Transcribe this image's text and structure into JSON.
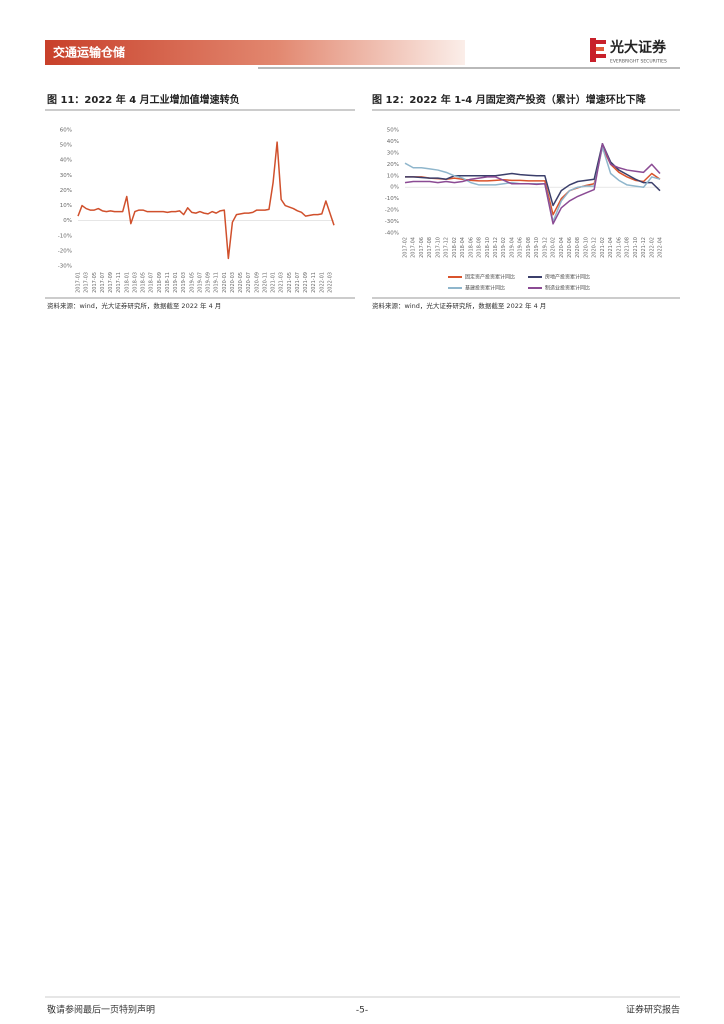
{
  "header": {
    "section": "交通运输仓储",
    "logo": "光大证券",
    "logo_en": "EVERBRIGHT SECURITIES"
  },
  "footer": {
    "disclaimer": "敬请参阅最后一页特别声明",
    "page": "-5-",
    "label": "证券研究报告"
  },
  "chart_data": [
    {
      "type": "line",
      "title": "图 11：2022 年 4 月工业增加值增速转负",
      "source": "资料来源：wind，光大证券研究所，数据截至 2022 年 4 月",
      "categories": [
        "2017-01",
        null,
        "2017-03",
        null,
        "2017-05",
        null,
        "2017-07",
        null,
        "2017-09",
        null,
        "2017-11",
        null,
        "2018-01",
        null,
        "2018-03",
        null,
        "2018-05",
        null,
        "2018-07",
        null,
        "2018-09",
        null,
        "2018-11",
        null,
        "2019-01",
        null,
        "2019-03",
        null,
        "2019-05",
        null,
        "2019-07",
        null,
        "2019-09",
        null,
        "2019-11",
        null,
        "2020-01",
        null,
        "2020-03",
        null,
        "2020-05",
        null,
        "2020-07",
        null,
        "2020-09",
        null,
        "2020-11",
        null,
        "2021-01",
        null,
        "2021-03",
        null,
        "2021-05",
        null,
        "2021-07",
        null,
        "2021-09",
        null,
        "2021-11",
        null,
        "2022-01",
        null,
        "2022-03",
        null
      ],
      "series": [
        {
          "color": "#d0502c",
          "values": [
            3,
            10,
            8,
            7,
            7,
            8,
            6.5,
            6,
            6.5,
            6,
            6,
            6,
            16,
            -2,
            6,
            7,
            7,
            6,
            6,
            6,
            6,
            6,
            5.5,
            6,
            6,
            6.5,
            4,
            8.5,
            5.5,
            5,
            6,
            5,
            4.5,
            6,
            5,
            6.5,
            7,
            -25,
            -1,
            4,
            4.5,
            5,
            5,
            5.5,
            7,
            7,
            7,
            7.5,
            25,
            52,
            14,
            10,
            9,
            8,
            6.5,
            5.5,
            3,
            3.5,
            4,
            4,
            4.5,
            13,
            5,
            -3
          ]
        }
      ],
      "ylim": [
        -30,
        60
      ],
      "yticks": [
        {
          "value": -30,
          "label": "-30%"
        },
        {
          "value": -20,
          "label": "-20%"
        },
        {
          "value": -10,
          "label": "-10%"
        },
        {
          "value": 0,
          "label": "0%"
        },
        {
          "value": 10,
          "label": "10%"
        },
        {
          "value": 20,
          "label": "20%"
        },
        {
          "value": 30,
          "label": "30%"
        },
        {
          "value": 40,
          "label": "40%"
        },
        {
          "value": 50,
          "label": "50%"
        },
        {
          "value": 60,
          "label": "60%"
        }
      ],
      "grid": false
    },
    {
      "type": "line",
      "title": "图 12：2022 年 1-4 月固定资产投资（累计）增速环比下降",
      "source": "资料来源：wind，光大证券研究所，数据截至 2022 年 4 月",
      "categories": [
        "2017-02",
        "2017-04",
        "2017-06",
        "2017-08",
        "2017-10",
        "2017-12",
        "2018-02",
        "2018-04",
        "2018-06",
        "2018-08",
        "2018-10",
        "2018-12",
        "2019-02",
        "2019-04",
        "2019-06",
        "2019-08",
        "2019-10",
        "2019-12",
        "2020-02",
        "2020-04",
        "2020-06",
        "2020-08",
        "2020-10",
        "2020-12",
        "2021-02",
        "2021-04",
        "2021-06",
        "2021-08",
        "2021-10",
        "2021-12",
        "2022-02",
        "2022-04"
      ],
      "series": [
        {
          "name": "固定资产投资累计同比",
          "color": "#d9532c",
          "values": [
            9,
            9,
            9,
            8,
            7.5,
            7,
            8,
            7,
            6,
            5.5,
            5.5,
            6,
            6.5,
            6,
            6,
            5.5,
            5.5,
            5.5,
            -24,
            -10,
            -3,
            -0.5,
            1.5,
            3,
            35,
            20,
            13,
            9,
            6,
            5,
            12,
            7
          ]
        },
        {
          "name": "房地产投资累计同比",
          "color": "#3b3f6b",
          "values": [
            9,
            9,
            8.5,
            8,
            8,
            7,
            10,
            10,
            10,
            10,
            10,
            10,
            11,
            12,
            11,
            10.5,
            10,
            10,
            -16,
            -3,
            2,
            5,
            6,
            7,
            38,
            22,
            15,
            11,
            7,
            4,
            4,
            -3
          ]
        },
        {
          "name": "基建投资累计同比",
          "color": "#8fb6cc",
          "values": [
            21,
            17,
            17,
            16,
            15,
            13,
            10,
            8,
            4,
            2,
            2,
            2,
            3,
            4,
            3,
            3,
            3,
            3,
            -30,
            -12,
            -3,
            0,
            1,
            1,
            35,
            12,
            6,
            2,
            1,
            0,
            9,
            7
          ]
        },
        {
          "name": "制造业投资累计同比",
          "color": "#8b4b94",
          "values": [
            4,
            5,
            5,
            5,
            4,
            5,
            4,
            5,
            7,
            8,
            9,
            9,
            6,
            3,
            3,
            3,
            2.5,
            3,
            -32,
            -18,
            -12,
            -8,
            -5,
            -2,
            38,
            20,
            17,
            15,
            14,
            13,
            20,
            12
          ]
        }
      ],
      "ylim": [
        -40,
        50
      ],
      "yticks": [
        {
          "value": -40,
          "label": "-40%"
        },
        {
          "value": -30,
          "label": "-30%"
        },
        {
          "value": -20,
          "label": "-20%"
        },
        {
          "value": -10,
          "label": "-10%"
        },
        {
          "value": 0,
          "label": "0%"
        },
        {
          "value": 10,
          "label": "10%"
        },
        {
          "value": 20,
          "label": "20%"
        },
        {
          "value": 30,
          "label": "30%"
        },
        {
          "value": 40,
          "label": "40%"
        },
        {
          "value": 50,
          "label": "50%"
        }
      ],
      "grid": false,
      "legend": "bottom"
    }
  ]
}
